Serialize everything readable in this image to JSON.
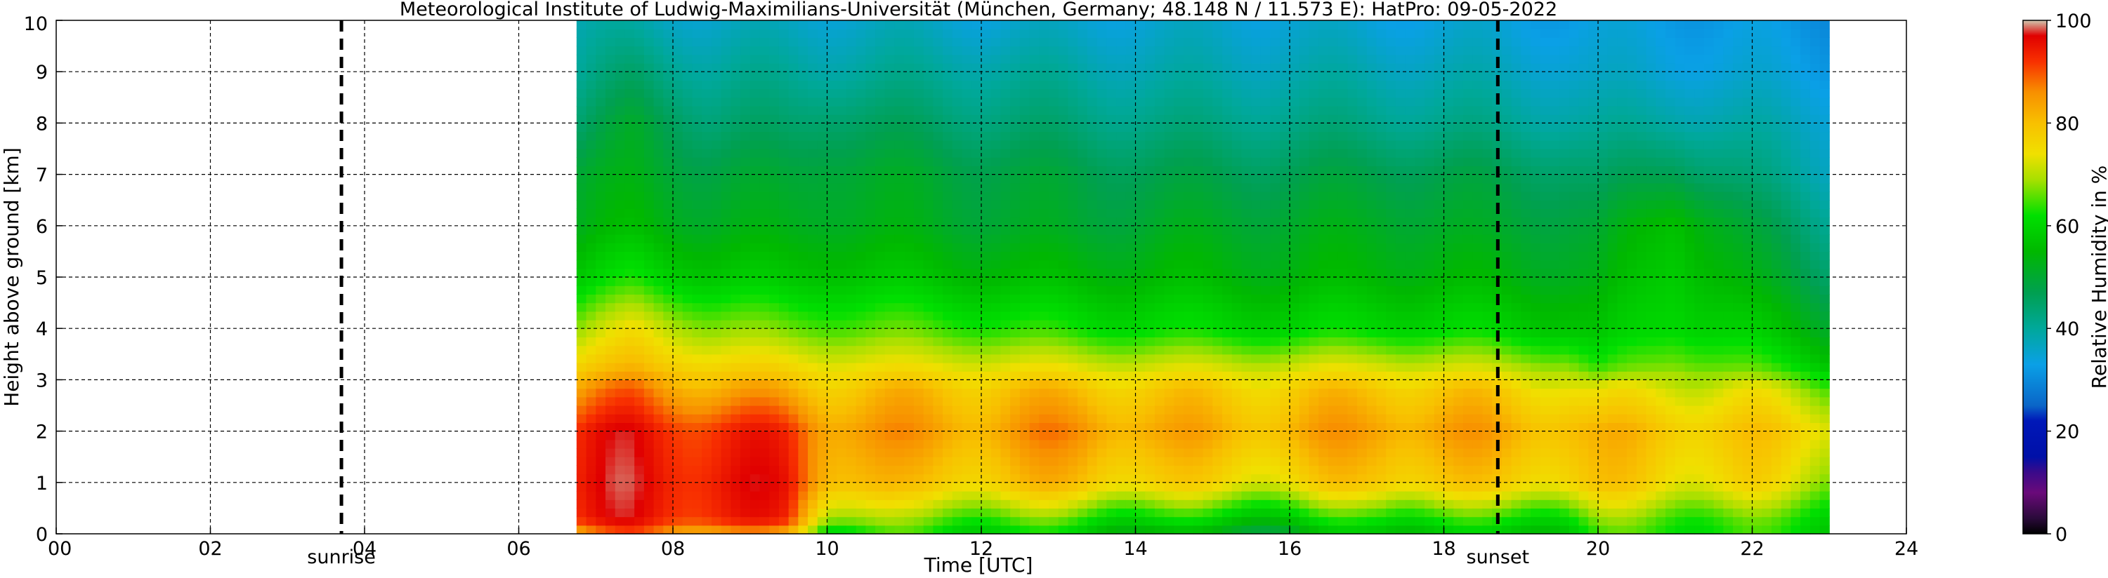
{
  "chart_data": {
    "type": "heatmap",
    "title": "Meteorological Institute of Ludwig-Maximilians-Universität (München, Germany; 48.148 N / 11.573 E):    HatPro: 09-05-2022",
    "xlabel": "Time [UTC]",
    "ylabel": "Height above ground [km]",
    "xlim": [
      0,
      24
    ],
    "ylim": [
      0,
      10
    ],
    "x_tick_labels": [
      "00",
      "02",
      "04",
      "06",
      "08",
      "10",
      "12",
      "14",
      "16",
      "18",
      "20",
      "22",
      "24"
    ],
    "y_tick_labels": [
      "0",
      "1",
      "2",
      "3",
      "4",
      "5",
      "6",
      "7",
      "8",
      "9",
      "10"
    ],
    "grid": true,
    "data_time_range": [
      6.75,
      23.0
    ],
    "markers": [
      {
        "label": "sunrise",
        "x": 3.7
      },
      {
        "label": "sunset",
        "x": 18.7
      }
    ],
    "colorbar": {
      "label": "Relative Humidity in %",
      "range": [
        0,
        100
      ],
      "tick_labels": [
        "0",
        "20",
        "40",
        "60",
        "80",
        "100"
      ],
      "stops": [
        {
          "value": 0,
          "color": "#000000"
        },
        {
          "value": 3,
          "color": "#2a0a3a"
        },
        {
          "value": 8,
          "color": "#6a0a7a"
        },
        {
          "value": 12,
          "color": "#3a0a8a"
        },
        {
          "value": 15,
          "color": "#0010a8"
        },
        {
          "value": 22,
          "color": "#0018b8"
        },
        {
          "value": 25,
          "color": "#0a66c8"
        },
        {
          "value": 33,
          "color": "#0aa0e6"
        },
        {
          "value": 40,
          "color": "#00a89a"
        },
        {
          "value": 47,
          "color": "#00a050"
        },
        {
          "value": 55,
          "color": "#00b800"
        },
        {
          "value": 62,
          "color": "#00e000"
        },
        {
          "value": 69,
          "color": "#a8e000"
        },
        {
          "value": 74,
          "color": "#f0e000"
        },
        {
          "value": 80,
          "color": "#f8c000"
        },
        {
          "value": 86,
          "color": "#f89000"
        },
        {
          "value": 92,
          "color": "#f83000"
        },
        {
          "value": 97,
          "color": "#e00000"
        },
        {
          "value": 100,
          "color": "#d0c8b0"
        }
      ]
    },
    "humidity_profile": [
      {
        "time": 6.75,
        "h": [
          0,
          0.3,
          1.0,
          2.0,
          2.8,
          3.3,
          4.0,
          5.0,
          6.0,
          7.0,
          8.0,
          9.0,
          10.0
        ],
        "rh": [
          82,
          93,
          94,
          93,
          84,
          76,
          68,
          58,
          52,
          50,
          44,
          40,
          38
        ]
      },
      {
        "time": 7.5,
        "h": [
          0,
          0.3,
          1.0,
          2.0,
          2.8,
          3.3,
          4.0,
          5.0,
          6.0,
          7.0,
          8.0,
          9.0,
          10.0
        ],
        "rh": [
          88,
          95,
          96,
          95,
          88,
          80,
          74,
          62,
          55,
          52,
          50,
          44,
          38
        ]
      },
      {
        "time": 8.5,
        "h": [
          0,
          0.3,
          1.0,
          2.0,
          2.8,
          3.3,
          4.0,
          5.0,
          6.0,
          7.0,
          8.0,
          9.0,
          10.0
        ],
        "rh": [
          84,
          94,
          95,
          93,
          83,
          76,
          68,
          58,
          52,
          49,
          44,
          40,
          36
        ]
      },
      {
        "time": 9.5,
        "h": [
          0,
          0.3,
          1.0,
          2.0,
          2.8,
          3.3,
          4.0,
          5.0,
          6.0,
          7.0,
          8.0,
          9.0,
          10.0
        ],
        "rh": [
          80,
          92,
          94,
          92,
          82,
          75,
          66,
          57,
          52,
          49,
          44,
          40,
          36
        ]
      },
      {
        "time": 10.0,
        "h": [
          0,
          0.3,
          1.0,
          2.0,
          2.8,
          3.3,
          4.0,
          5.0,
          6.0,
          7.0,
          8.0,
          9.0,
          10.0
        ],
        "rh": [
          62,
          72,
          84,
          86,
          80,
          74,
          66,
          58,
          53,
          51,
          46,
          40,
          36
        ]
      },
      {
        "time": 11.0,
        "h": [
          0,
          0.3,
          1.0,
          2.0,
          2.8,
          3.3,
          4.0,
          5.0,
          6.0,
          7.0,
          8.0,
          9.0,
          10.0
        ],
        "rh": [
          62,
          66,
          78,
          84,
          80,
          73,
          65,
          57,
          52,
          50,
          45,
          40,
          36
        ]
      },
      {
        "time": 12.0,
        "h": [
          0,
          0.3,
          1.0,
          2.0,
          2.8,
          3.3,
          4.0,
          5.0,
          6.0,
          7.0,
          8.0,
          9.0,
          10.0
        ],
        "rh": [
          60,
          66,
          79,
          84,
          80,
          73,
          64,
          56,
          51,
          49,
          44,
          40,
          35
        ]
      },
      {
        "time": 13.3,
        "h": [
          0,
          0.3,
          1.0,
          2.0,
          2.8,
          3.3,
          4.0,
          5.0,
          6.0,
          7.0,
          8.0,
          9.0,
          10.0
        ],
        "rh": [
          58,
          64,
          80,
          86,
          80,
          72,
          62,
          55,
          50,
          48,
          43,
          39,
          35
        ]
      },
      {
        "time": 14.5,
        "h": [
          0,
          0.3,
          1.0,
          2.0,
          2.8,
          3.3,
          4.0,
          5.0,
          6.0,
          7.0,
          8.0,
          9.0,
          10.0
        ],
        "rh": [
          52,
          60,
          76,
          82,
          78,
          71,
          61,
          55,
          51,
          47,
          42,
          38,
          35
        ]
      },
      {
        "time": 16.0,
        "h": [
          0,
          0.3,
          1.0,
          2.0,
          2.8,
          3.3,
          4.0,
          5.0,
          6.0,
          7.0,
          8.0,
          9.0,
          10.0
        ],
        "rh": [
          50,
          58,
          75,
          82,
          78,
          71,
          60,
          54,
          51,
          47,
          42,
          38,
          35
        ]
      },
      {
        "time": 17.2,
        "h": [
          0,
          0.3,
          1.0,
          2.0,
          2.8,
          3.3,
          4.0,
          5.0,
          6.0,
          7.0,
          8.0,
          9.0,
          10.0
        ],
        "rh": [
          58,
          64,
          80,
          85,
          80,
          72,
          61,
          55,
          52,
          48,
          42,
          38,
          34
        ]
      },
      {
        "time": 18.5,
        "h": [
          0,
          0.3,
          1.0,
          2.0,
          2.8,
          3.3,
          4.0,
          5.0,
          6.0,
          7.0,
          8.0,
          9.0,
          10.0
        ],
        "rh": [
          56,
          62,
          77,
          83,
          78,
          70,
          60,
          54,
          50,
          47,
          41,
          37,
          34
        ]
      },
      {
        "time": 19.6,
        "h": [
          0,
          0.3,
          1.0,
          2.0,
          2.8,
          3.3,
          4.0,
          5.0,
          6.0,
          7.0,
          8.0,
          9.0,
          10.0
        ],
        "rh": [
          58,
          63,
          78,
          82,
          76,
          68,
          58,
          53,
          50,
          46,
          40,
          36,
          33
        ]
      },
      {
        "time": 20.0,
        "h": [
          0,
          0.3,
          1.0,
          2.0,
          2.8,
          3.3,
          4.0,
          5.0,
          6.0,
          7.0,
          8.0,
          9.0,
          10.0
        ],
        "rh": [
          62,
          66,
          78,
          80,
          72,
          62,
          56,
          52,
          49,
          44,
          39,
          35,
          33
        ]
      },
      {
        "time": 21.0,
        "h": [
          0,
          0.3,
          1.0,
          2.0,
          2.8,
          3.3,
          4.0,
          5.0,
          6.0,
          7.0,
          8.0,
          9.0,
          10.0
        ],
        "rh": [
          64,
          66,
          76,
          80,
          74,
          68,
          62,
          60,
          58,
          48,
          40,
          35,
          33
        ]
      },
      {
        "time": 22.0,
        "h": [
          0,
          0.3,
          1.0,
          2.0,
          2.8,
          3.3,
          4.0,
          5.0,
          6.0,
          7.0,
          8.0,
          9.0,
          10.0
        ],
        "rh": [
          62,
          64,
          75,
          78,
          72,
          64,
          58,
          52,
          48,
          42,
          38,
          34,
          32
        ]
      },
      {
        "time": 23.0,
        "h": [
          0,
          0.3,
          1.0,
          2.0,
          2.8,
          3.3,
          4.0,
          5.0,
          6.0,
          7.0,
          8.0,
          9.0,
          10.0
        ],
        "rh": [
          60,
          62,
          70,
          76,
          68,
          58,
          52,
          46,
          42,
          38,
          36,
          33,
          31
        ]
      }
    ]
  }
}
